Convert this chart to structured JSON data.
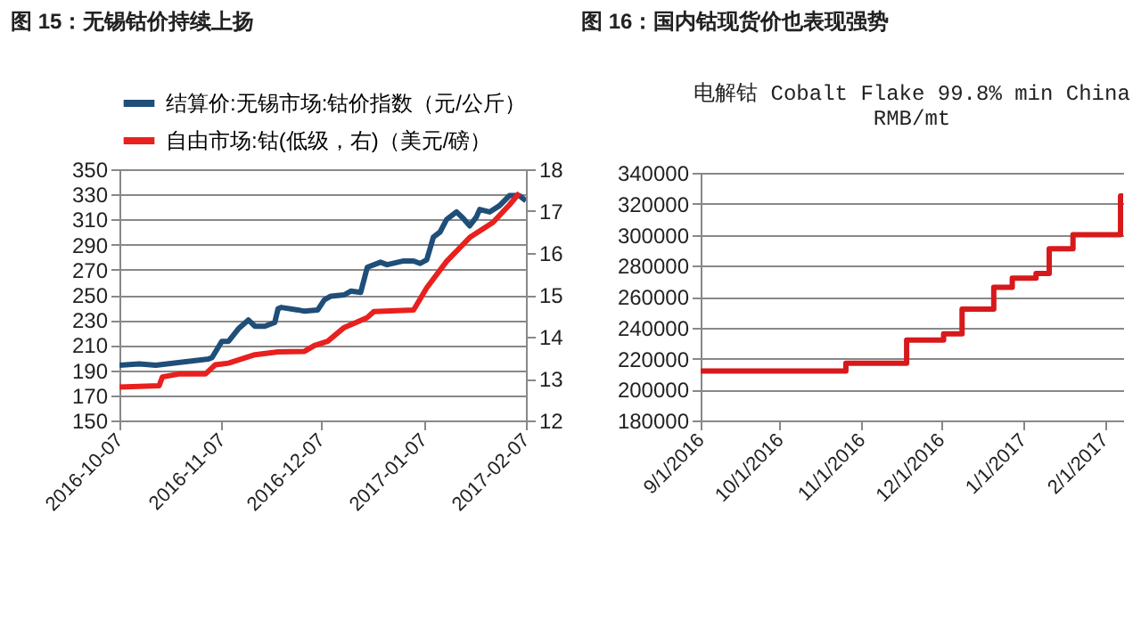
{
  "chart_data": [
    {
      "type": "line",
      "title": "图 15：无锡钴价持续上扬",
      "legend": "top",
      "grid": "y",
      "xlim": [
        "2016-10-07",
        "2017-02-07"
      ],
      "xticks": [
        "2016-10-07",
        "2016-11-07",
        "2016-12-07",
        "2017-01-07",
        "2017-02-07"
      ],
      "ylim": [
        150,
        350
      ],
      "yticks": [
        150,
        170,
        190,
        210,
        230,
        250,
        270,
        290,
        310,
        330,
        350
      ],
      "y2lim": [
        12,
        18
      ],
      "y2ticks": [
        12,
        13,
        14,
        15,
        16,
        17,
        18
      ],
      "series": [
        {
          "name": "结算价:无锡市场:钴价指数（元/公斤）",
          "color": "#1f4e79",
          "x": [
            "2016-10-07",
            "2016-10-13",
            "2016-10-18",
            "2016-11-03",
            "2016-11-04",
            "2016-11-07",
            "2016-11-09",
            "2016-11-12",
            "2016-11-15",
            "2016-11-17",
            "2016-11-20",
            "2016-11-23",
            "2016-11-24",
            "2016-11-25",
            "2016-11-30",
            "2016-12-02",
            "2016-12-06",
            "2016-12-08",
            "2016-12-10",
            "2016-12-14",
            "2016-12-16",
            "2016-12-19",
            "2016-12-21",
            "2016-12-25",
            "2016-12-27",
            "2017-01-01",
            "2017-01-04",
            "2017-01-06",
            "2017-01-08",
            "2017-01-10",
            "2017-01-12",
            "2017-01-14",
            "2017-01-17",
            "2017-01-19",
            "2017-01-21",
            "2017-01-23",
            "2017-01-24",
            "2017-01-27",
            "2017-01-30",
            "2017-02-02",
            "2017-02-05",
            "2017-02-07"
          ],
          "values": [
            194,
            195,
            194,
            199,
            200,
            213,
            213,
            223,
            230,
            225,
            225,
            228,
            239,
            240,
            238,
            237,
            238,
            246,
            249,
            250,
            253,
            252,
            272,
            276,
            274,
            277,
            277,
            275,
            278,
            296,
            300,
            310,
            316,
            311,
            305,
            312,
            318,
            316,
            321,
            329,
            329,
            325
          ]
        },
        {
          "name": "自由市场:钴(低级，右)（美元/磅）",
          "color": "#e8201e",
          "axis": "y2",
          "x": [
            "2016-10-07",
            "2016-10-19",
            "2016-10-20",
            "2016-10-25",
            "2016-11-02",
            "2016-11-05",
            "2016-11-09",
            "2016-11-17",
            "2016-11-24",
            "2016-12-02",
            "2016-12-05",
            "2016-12-09",
            "2016-12-14",
            "2016-12-21",
            "2016-12-23",
            "2017-01-04",
            "2017-01-08",
            "2017-01-14",
            "2017-01-21",
            "2017-01-28",
            "2017-02-02",
            "2017-02-05"
          ],
          "values": [
            12.8,
            12.83,
            13.04,
            13.11,
            13.11,
            13.33,
            13.37,
            13.57,
            13.64,
            13.65,
            13.79,
            13.89,
            14.22,
            14.46,
            14.6,
            14.64,
            15.17,
            15.8,
            16.37,
            16.73,
            17.15,
            17.43
          ]
        }
      ]
    },
    {
      "type": "step",
      "title": "图 16：国内钴现货价也表现强势",
      "subtitle": "电解钴 Cobalt Flake 99.8% min China\nRMB/mt",
      "grid": "y",
      "xlim": [
        "2016-09-01",
        "2017-02-08"
      ],
      "xticks": [
        {
          "value": "2016-09-01",
          "label": "9/1/2016"
        },
        {
          "value": "2016-10-01",
          "label": "10/1/2016"
        },
        {
          "value": "2016-11-01",
          "label": "11/1/2016"
        },
        {
          "value": "2016-12-01",
          "label": "12/1/2016"
        },
        {
          "value": "2017-01-01",
          "label": "1/1/2017"
        },
        {
          "value": "2017-02-01",
          "label": "2/1/2017"
        }
      ],
      "ylim": [
        180000,
        340000
      ],
      "yticks": [
        180000,
        200000,
        220000,
        240000,
        260000,
        280000,
        300000,
        320000,
        340000
      ],
      "series": [
        {
          "color": "#d7191c",
          "x": [
            "2016-09-01",
            "2016-10-26",
            "2016-11-18",
            "2016-12-02",
            "2016-12-09",
            "2016-12-21",
            "2016-12-28",
            "2017-01-06",
            "2017-01-11",
            "2017-01-20",
            "2017-02-07",
            "2017-02-08"
          ],
          "values": [
            212000,
            217000,
            232000,
            236000,
            252000,
            266000,
            272000,
            275000,
            291000,
            300000,
            325000,
            325000
          ]
        }
      ]
    }
  ]
}
